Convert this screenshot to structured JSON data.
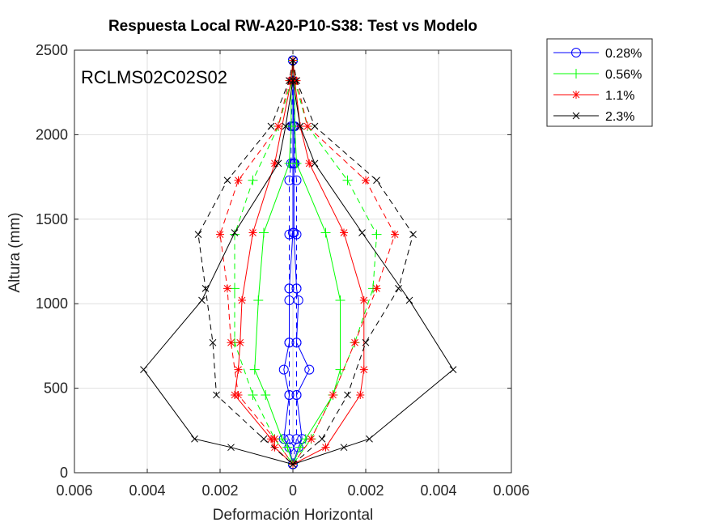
{
  "chart_data": {
    "type": "line",
    "title": "Respuesta Local RW-A20-P10-S38: Test vs Modelo",
    "xlabel": "Deformación Horizontal",
    "ylabel": "Altura (mm)",
    "annotation": "RCLMS02C02S02",
    "xlim": [
      -0.006,
      0.006
    ],
    "ylim": [
      0,
      2500
    ],
    "xticks": [
      -0.006,
      -0.004,
      -0.002,
      0,
      0.002,
      0.004,
      0.006
    ],
    "xtick_labels": [
      "0.006",
      "0.004",
      "0.002",
      "0",
      "0.002",
      "0.004",
      "0.006"
    ],
    "yticks": [
      0,
      500,
      1000,
      1500,
      2000,
      2500
    ],
    "ytick_labels": [
      "0",
      "500",
      "1000",
      "1500",
      "2000",
      "2500"
    ],
    "grid": true,
    "legend_position": "outside-top-right",
    "series": [
      {
        "name": "0.28%",
        "color": "#0000ff",
        "marker": "circle",
        "solid_left": [
          [
            0,
            2440
          ],
          [
            0,
            2320
          ],
          [
            0,
            2050
          ],
          [
            0,
            1830
          ],
          [
            0,
            1420
          ],
          [
            -0.0001,
            1090
          ],
          [
            -0.0001,
            1020
          ],
          [
            -0.0001,
            770
          ],
          [
            -0.00025,
            610
          ],
          [
            -0.0001,
            460
          ],
          [
            -0.00025,
            200
          ],
          [
            -0.0001,
            150
          ],
          [
            0,
            50
          ]
        ],
        "solid_right": [
          [
            0,
            2440
          ],
          [
            0,
            2320
          ],
          [
            3e-05,
            2050
          ],
          [
            3e-05,
            1830
          ],
          [
            3e-05,
            1420
          ],
          [
            0.0001,
            1090
          ],
          [
            0.00015,
            1020
          ],
          [
            0.0001,
            770
          ],
          [
            0.00045,
            610
          ],
          [
            0.0001,
            460
          ],
          [
            0.00025,
            200
          ],
          [
            0.00015,
            150
          ],
          [
            0,
            50
          ]
        ],
        "dashed_left": [
          [
            0,
            2440
          ],
          [
            0,
            2320
          ],
          [
            -5e-05,
            2050
          ],
          [
            -5e-05,
            1830
          ],
          [
            -0.0001,
            1730
          ],
          [
            -0.0001,
            1410
          ],
          [
            -0.0001,
            1090
          ],
          [
            -0.0001,
            770
          ],
          [
            -0.0001,
            460
          ],
          [
            -0.0001,
            200
          ],
          [
            0,
            50
          ]
        ],
        "dashed_right": [
          [
            0,
            2440
          ],
          [
            0,
            2320
          ],
          [
            5e-05,
            2050
          ],
          [
            5e-05,
            1830
          ],
          [
            0.0001,
            1730
          ],
          [
            0.0001,
            1410
          ],
          [
            0.0001,
            1090
          ],
          [
            0.0001,
            770
          ],
          [
            0.0001,
            460
          ],
          [
            0.0001,
            200
          ],
          [
            0,
            50
          ]
        ]
      },
      {
        "name": "0.56%",
        "color": "#00ff00",
        "marker": "plus",
        "solid_left": [
          [
            0,
            2440
          ],
          [
            -5e-05,
            2320
          ],
          [
            -5e-05,
            2050
          ],
          [
            -0.0001,
            1830
          ],
          [
            -0.0008,
            1420
          ],
          [
            -0.00095,
            1020
          ],
          [
            -0.00105,
            610
          ],
          [
            -0.00075,
            460
          ],
          [
            -0.0003,
            200
          ],
          [
            -0.00015,
            150
          ],
          [
            0,
            50
          ]
        ],
        "solid_right": [
          [
            0,
            2440
          ],
          [
            5e-05,
            2320
          ],
          [
            5e-05,
            2050
          ],
          [
            0.0001,
            1830
          ],
          [
            0.0009,
            1420
          ],
          [
            0.0013,
            1020
          ],
          [
            0.0013,
            610
          ],
          [
            0.0011,
            460
          ],
          [
            0.00035,
            200
          ],
          [
            0.0002,
            150
          ],
          [
            0,
            50
          ]
        ],
        "dashed_left": [
          [
            0,
            2440
          ],
          [
            -5e-05,
            2320
          ],
          [
            -0.0004,
            2050
          ],
          [
            -0.0011,
            1730
          ],
          [
            -0.0016,
            1410
          ],
          [
            -0.0016,
            1090
          ],
          [
            -0.0016,
            770
          ],
          [
            -0.0011,
            460
          ],
          [
            -0.0005,
            200
          ],
          [
            0,
            50
          ]
        ],
        "dashed_right": [
          [
            0,
            2440
          ],
          [
            5e-05,
            2320
          ],
          [
            0.0004,
            2050
          ],
          [
            0.0015,
            1730
          ],
          [
            0.0023,
            1410
          ],
          [
            0.0022,
            1090
          ],
          [
            0.0017,
            770
          ],
          [
            0.0011,
            460
          ],
          [
            0.0005,
            200
          ],
          [
            0,
            50
          ]
        ]
      },
      {
        "name": "1.1%",
        "color": "#ff0000",
        "marker": "star",
        "solid_left": [
          [
            0,
            2440
          ],
          [
            -5e-05,
            2320
          ],
          [
            -0.0005,
            1830
          ],
          [
            -0.0011,
            1420
          ],
          [
            -0.0014,
            1020
          ],
          [
            -0.00145,
            770
          ],
          [
            -0.0015,
            610
          ],
          [
            -0.0016,
            460
          ],
          [
            -0.0006,
            200
          ],
          [
            -0.0005,
            150
          ],
          [
            0,
            50
          ]
        ],
        "solid_right": [
          [
            0,
            2440
          ],
          [
            5e-05,
            2320
          ],
          [
            0.0002,
            2050
          ],
          [
            0.00045,
            1830
          ],
          [
            0.0014,
            1420
          ],
          [
            0.00195,
            1020
          ],
          [
            0.00195,
            610
          ],
          [
            0.00185,
            460
          ],
          [
            0.0009,
            150
          ],
          [
            0,
            50
          ]
        ],
        "dashed_left": [
          [
            0,
            2440
          ],
          [
            -0.0001,
            2320
          ],
          [
            -0.0004,
            2050
          ],
          [
            -0.0015,
            1730
          ],
          [
            -0.002,
            1410
          ],
          [
            -0.0018,
            1090
          ],
          [
            -0.0017,
            770
          ],
          [
            -0.0015,
            460
          ],
          [
            -0.0005,
            200
          ],
          [
            0,
            50
          ]
        ],
        "dashed_right": [
          [
            0,
            2440
          ],
          [
            0.0001,
            2320
          ],
          [
            0.0004,
            2050
          ],
          [
            0.002,
            1730
          ],
          [
            0.0028,
            1410
          ],
          [
            0.0023,
            1090
          ],
          [
            0.0017,
            770
          ],
          [
            0.0011,
            460
          ],
          [
            0.0005,
            200
          ],
          [
            0,
            50
          ]
        ]
      },
      {
        "name": "2.3%",
        "color": "#000000",
        "marker": "x",
        "solid_left": [
          [
            0,
            2440
          ],
          [
            0,
            2320
          ],
          [
            -0.0002,
            2050
          ],
          [
            -0.0004,
            1830
          ],
          [
            -0.0016,
            1420
          ],
          [
            -0.0025,
            1020
          ],
          [
            -0.0041,
            610
          ],
          [
            -0.0027,
            200
          ],
          [
            -0.0017,
            150
          ],
          [
            0,
            50
          ]
        ],
        "solid_right": [
          [
            0,
            2440
          ],
          [
            0,
            2320
          ],
          [
            0.0002,
            2050
          ],
          [
            0.0006,
            1830
          ],
          [
            0.0019,
            1420
          ],
          [
            0.0032,
            1020
          ],
          [
            0.0044,
            610
          ],
          [
            0.0021,
            200
          ],
          [
            0.0014,
            150
          ],
          [
            0,
            50
          ]
        ],
        "dashed_left": [
          [
            0,
            2440
          ],
          [
            -0.0001,
            2320
          ],
          [
            -0.0006,
            2050
          ],
          [
            -0.0018,
            1730
          ],
          [
            -0.0026,
            1410
          ],
          [
            -0.0024,
            1090
          ],
          [
            -0.0022,
            770
          ],
          [
            -0.0021,
            460
          ],
          [
            -0.0008,
            200
          ],
          [
            0,
            50
          ]
        ],
        "dashed_right": [
          [
            0,
            2440
          ],
          [
            0.0001,
            2320
          ],
          [
            0.0006,
            2050
          ],
          [
            0.0023,
            1730
          ],
          [
            0.0033,
            1410
          ],
          [
            0.0029,
            1090
          ],
          [
            0.002,
            770
          ],
          [
            0.0015,
            460
          ],
          [
            0.0008,
            200
          ],
          [
            0,
            50
          ]
        ]
      }
    ]
  }
}
